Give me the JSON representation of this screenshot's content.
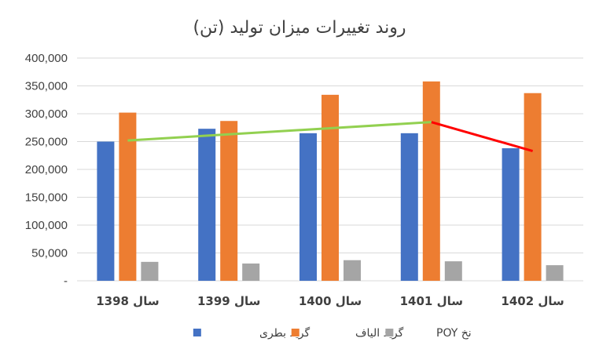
{
  "chart_data": {
    "type": "bar",
    "title": "روند تغییرات میزان تولید (تن)",
    "categories": [
      "سال 1398",
      "سال 1399",
      "سال 1400",
      "سال 1401",
      "سال 1402"
    ],
    "series": [
      {
        "name": "گرید بطری",
        "color": "#4472c4",
        "values": [
          250000,
          273000,
          265000,
          265000,
          238000
        ]
      },
      {
        "name": "گرید الیاف",
        "color": "#ed7d31",
        "values": [
          302000,
          287000,
          334000,
          358000,
          337000
        ]
      },
      {
        "name": "نخ POY",
        "color": "#a5a5a5",
        "values": [
          34000,
          31000,
          37000,
          35000,
          28000
        ]
      }
    ],
    "ylim": [
      0,
      400000
    ],
    "yticks": [
      0,
      50000,
      100000,
      150000,
      200000,
      250000,
      300000,
      350000,
      400000
    ],
    "ytick_labels": [
      "-",
      "50,000",
      "100,000",
      "150,000",
      "200,000",
      "250,000",
      "300,000",
      "350,000",
      "400,000"
    ],
    "trendlines": [
      {
        "color": "#92d050",
        "points": [
          [
            "سال 1398",
            252000
          ],
          [
            "سال 1401",
            285000
          ]
        ]
      },
      {
        "color": "#ff0000",
        "points": [
          [
            "سال 1401",
            285000
          ],
          [
            "سال 1402",
            233000
          ]
        ]
      }
    ],
    "grid": true,
    "legend_position": "bottom"
  }
}
